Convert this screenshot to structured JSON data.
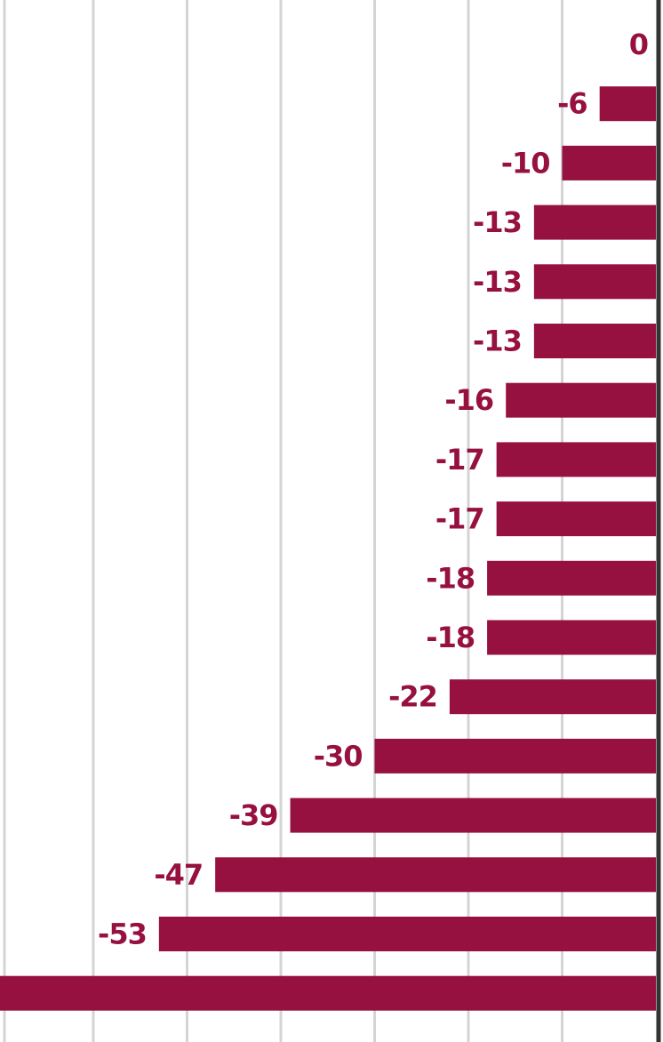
{
  "chart_data": {
    "type": "bar",
    "orientation": "horizontal",
    "values": [
      0,
      -6,
      -10,
      -13,
      -13,
      -13,
      -16,
      -17,
      -17,
      -18,
      -18,
      -22,
      -30,
      -39,
      -47,
      -53,
      -70
    ],
    "data_labels": [
      "0",
      "-6",
      "-10",
      "-13",
      "-13",
      "-13",
      "-16",
      "-17",
      "-17",
      "-18",
      "-18",
      "-22",
      "-30",
      "-39",
      "-47",
      "-53",
      ""
    ],
    "xlim": [
      -70,
      0
    ],
    "grid": true,
    "legend": "none"
  },
  "colors": {
    "bar": "#961040",
    "label": "#961040",
    "grid": "#d4d4d4",
    "axis": "#333333",
    "background": "#ffffff"
  }
}
